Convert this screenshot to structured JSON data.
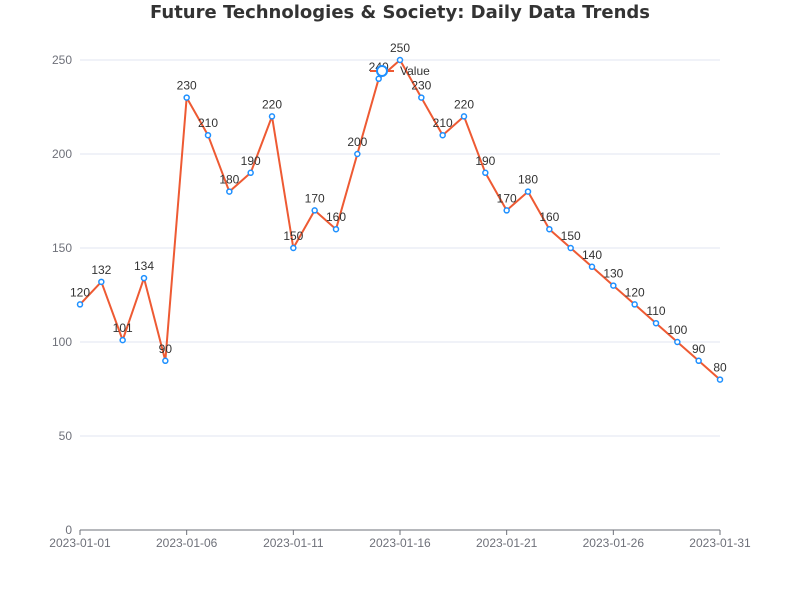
{
  "chart_data": {
    "type": "line",
    "title": "Future Technologies & Society: Daily Data Trends",
    "xlabel": "",
    "ylabel": "",
    "x": [
      "2023-01-01",
      "2023-01-02",
      "2023-01-03",
      "2023-01-04",
      "2023-01-05",
      "2023-01-06",
      "2023-01-07",
      "2023-01-08",
      "2023-01-09",
      "2023-01-10",
      "2023-01-11",
      "2023-01-12",
      "2023-01-13",
      "2023-01-14",
      "2023-01-15",
      "2023-01-16",
      "2023-01-17",
      "2023-01-18",
      "2023-01-19",
      "2023-01-20",
      "2023-01-21",
      "2023-01-22",
      "2023-01-23",
      "2023-01-24",
      "2023-01-25",
      "2023-01-26",
      "2023-01-27",
      "2023-01-28",
      "2023-01-29",
      "2023-01-30",
      "2023-01-31"
    ],
    "x_tick_labels": [
      "2023-01-01",
      "2023-01-06",
      "2023-01-11",
      "2023-01-16",
      "2023-01-21",
      "2023-01-26",
      "2023-01-31"
    ],
    "y_ticks": [
      0,
      50,
      100,
      150,
      200,
      250
    ],
    "ylim": [
      0,
      250
    ],
    "grid": true,
    "legend_position": "top-center",
    "series": [
      {
        "name": "Value",
        "color": "#ee5a33",
        "marker_color": "#1e90ff",
        "values": [
          120,
          132,
          101,
          134,
          90,
          230,
          210,
          180,
          190,
          220,
          150,
          170,
          160,
          200,
          240,
          250,
          230,
          210,
          220,
          190,
          170,
          180,
          160,
          150,
          140,
          130,
          120,
          110,
          100,
          90,
          80
        ]
      }
    ]
  }
}
